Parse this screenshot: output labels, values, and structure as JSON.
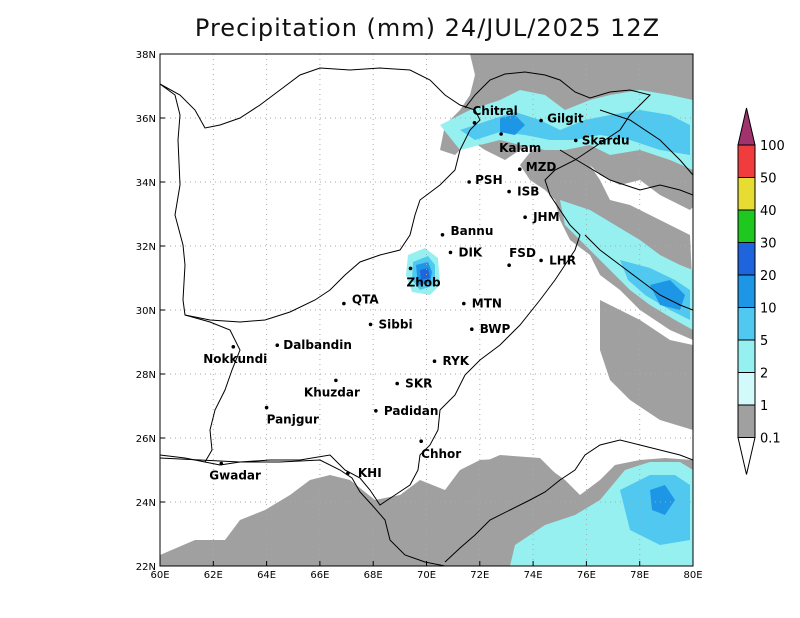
{
  "title": "Precipitation (mm) 24/JUL/2025 12Z",
  "axes": {
    "lat_ticks": [
      "22N",
      "24N",
      "26N",
      "28N",
      "30N",
      "32N",
      "34N",
      "36N",
      "38N"
    ],
    "lon_ticks": [
      "60E",
      "62E",
      "64E",
      "66E",
      "68E",
      "70E",
      "72E",
      "74E",
      "76E",
      "78E",
      "80E"
    ],
    "lat_range": [
      22,
      38
    ],
    "lon_range": [
      60,
      80
    ],
    "grid": "dotted"
  },
  "cities": [
    {
      "name": "Chitral",
      "lon": 71.8,
      "lat": 35.85
    },
    {
      "name": "Gilgit",
      "lon": 74.3,
      "lat": 35.92
    },
    {
      "name": "Kalam",
      "lon": 72.8,
      "lat": 35.5
    },
    {
      "name": "Skardu",
      "lon": 75.6,
      "lat": 35.3
    },
    {
      "name": "MZD",
      "lon": 73.5,
      "lat": 34.4
    },
    {
      "name": "PSH",
      "lon": 71.6,
      "lat": 34.0
    },
    {
      "name": "ISB",
      "lon": 73.1,
      "lat": 33.7
    },
    {
      "name": "JHM",
      "lon": 73.7,
      "lat": 32.9
    },
    {
      "name": "Bannu",
      "lon": 70.6,
      "lat": 32.35
    },
    {
      "name": "DIK",
      "lon": 70.9,
      "lat": 31.8
    },
    {
      "name": "FSD",
      "lon": 73.1,
      "lat": 31.4
    },
    {
      "name": "LHR",
      "lon": 74.3,
      "lat": 31.55
    },
    {
      "name": "Zhob",
      "lon": 69.4,
      "lat": 31.3
    },
    {
      "name": "QTA",
      "lon": 66.9,
      "lat": 30.2
    },
    {
      "name": "MTN",
      "lon": 71.4,
      "lat": 30.2
    },
    {
      "name": "Sibbi",
      "lon": 67.9,
      "lat": 29.55
    },
    {
      "name": "BWP",
      "lon": 71.7,
      "lat": 29.4
    },
    {
      "name": "Dalbandin",
      "lon": 64.4,
      "lat": 28.9
    },
    {
      "name": "Nokkundi",
      "lon": 62.75,
      "lat": 28.85
    },
    {
      "name": "RYK",
      "lon": 70.3,
      "lat": 28.4
    },
    {
      "name": "Khuzdar",
      "lon": 66.6,
      "lat": 27.8
    },
    {
      "name": "SKR",
      "lon": 68.9,
      "lat": 27.7
    },
    {
      "name": "Panjgur",
      "lon": 64.0,
      "lat": 26.95
    },
    {
      "name": "Padidan",
      "lon": 68.1,
      "lat": 26.85
    },
    {
      "name": "Chhor",
      "lon": 69.8,
      "lat": 25.9
    },
    {
      "name": "Gwadar",
      "lon": 62.3,
      "lat": 25.2
    },
    {
      "name": "KHI",
      "lon": 67.05,
      "lat": 24.9
    }
  ],
  "colorbar": {
    "levels": [
      "0.1",
      "1",
      "2",
      "5",
      "10",
      "20",
      "30",
      "40",
      "50",
      "100"
    ],
    "colors": [
      "#a0a0a0",
      "#d2fafa",
      "#96f0f0",
      "#50c8f0",
      "#1e96e6",
      "#1e64dc",
      "#1ec81e",
      "#e6dc32",
      "#f03c3c",
      "#a0326e"
    ],
    "under_color": "#ffffff",
    "over_color": "#a0326e"
  },
  "colors": {
    "gray": "#a0a0a0",
    "light_cyan": "#96f0f0",
    "medium_blue": "#50c8f0",
    "blue": "#1e96e6",
    "dark_blue": "#1e64dc"
  }
}
